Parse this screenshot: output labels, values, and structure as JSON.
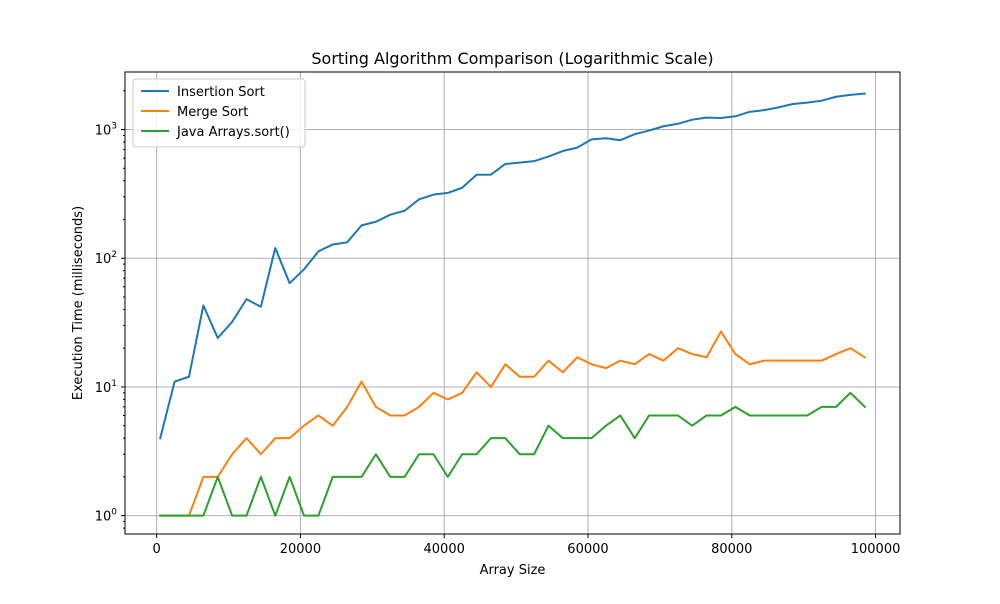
{
  "chart_data": {
    "type": "line",
    "title": "Sorting Algorithm Comparison (Logarithmic Scale)",
    "xlabel": "Array Size",
    "ylabel": "Execution Time (milliseconds)",
    "yscale": "log",
    "xlim": [
      -4400,
      103400
    ],
    "ylim": [
      0.72,
      2800
    ],
    "grid": true,
    "legend_position": "top-left",
    "x_ticks": [
      0,
      20000,
      40000,
      60000,
      80000,
      100000
    ],
    "x_tick_labels": [
      "0",
      "20000",
      "40000",
      "60000",
      "80000",
      "100000"
    ],
    "y_ticks": [
      1,
      10,
      100,
      1000
    ],
    "y_tick_bases": [
      "10",
      "10",
      "10",
      "10"
    ],
    "y_tick_exponents": [
      "0",
      "1",
      "2",
      "3"
    ],
    "x": [
      500,
      2500,
      4500,
      6500,
      8500,
      10500,
      12500,
      14500,
      16500,
      18500,
      20500,
      22500,
      24500,
      26500,
      28500,
      30500,
      32500,
      34500,
      36500,
      38500,
      40500,
      42500,
      44500,
      46500,
      48500,
      50500,
      52500,
      54500,
      56500,
      58500,
      60500,
      62500,
      64500,
      66500,
      68500,
      70500,
      72500,
      74500,
      76500,
      78500,
      80500,
      82500,
      84500,
      86500,
      88500,
      90500,
      92500,
      94500,
      96500,
      98500
    ],
    "series": [
      {
        "name": "Insertion Sort",
        "color": "#1f77b4",
        "values": [
          4,
          11,
          12,
          43,
          24,
          32,
          48,
          42,
          120,
          64,
          82,
          113,
          128,
          133,
          180,
          192,
          218,
          234,
          287,
          312,
          322,
          353,
          445,
          446,
          540,
          553,
          568,
          617,
          681,
          724,
          838,
          856,
          826,
          920,
          982,
          1061,
          1108,
          1193,
          1238,
          1230,
          1268,
          1373,
          1416,
          1487,
          1580,
          1620,
          1676,
          1798,
          1861,
          1901
        ]
      },
      {
        "name": "Merge Sort",
        "color": "#ff7f0e",
        "values": [
          1,
          1,
          1,
          2,
          2,
          3,
          4,
          3,
          4,
          4,
          5,
          6,
          5,
          7,
          11,
          7,
          6,
          6,
          7,
          9,
          8,
          9,
          13,
          10,
          15,
          12,
          12,
          16,
          13,
          17,
          15,
          14,
          16,
          15,
          18,
          16,
          20,
          18,
          17,
          27,
          18,
          15,
          16,
          16,
          16,
          16,
          16,
          18,
          20,
          17
        ]
      },
      {
        "name": "Java Arrays.sort()",
        "color": "#2ca02c",
        "values": [
          1,
          1,
          1,
          1,
          2,
          1,
          1,
          2,
          1,
          2,
          1,
          1,
          2,
          2,
          2,
          3,
          2,
          2,
          3,
          3,
          2,
          3,
          3,
          4,
          4,
          3,
          3,
          5,
          4,
          4,
          4,
          5,
          6,
          4,
          6,
          6,
          6,
          5,
          6,
          6,
          7,
          6,
          6,
          6,
          6,
          6,
          7,
          7,
          9,
          7
        ]
      }
    ]
  }
}
